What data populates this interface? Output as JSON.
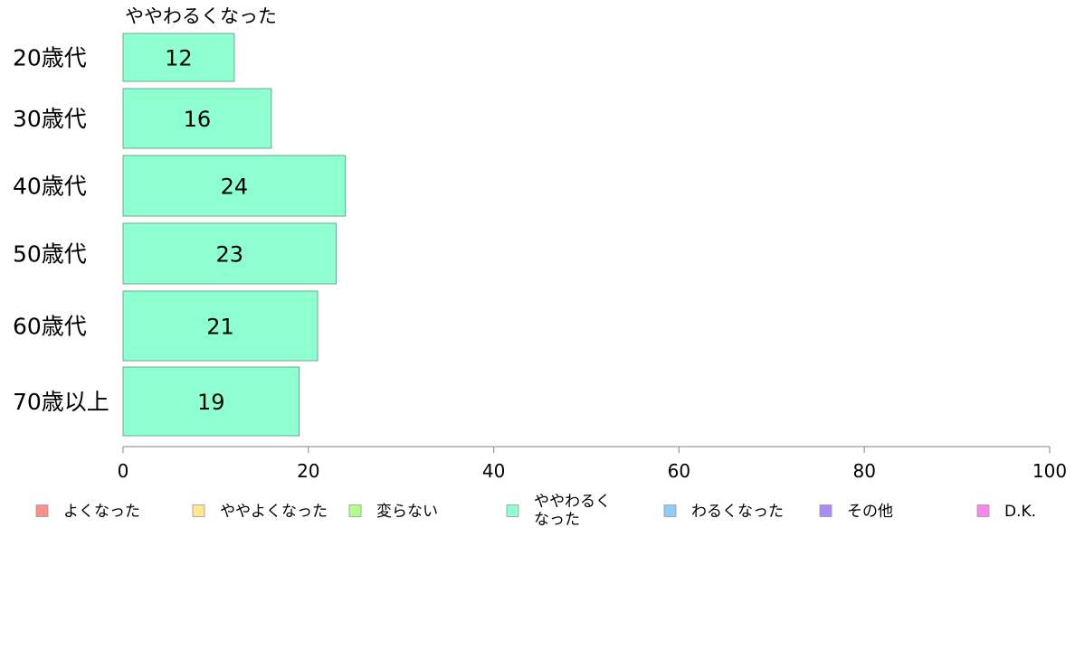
{
  "chart_data": {
    "type": "bar",
    "orientation": "horizontal",
    "title": "ややわるくなった",
    "categories": [
      "20歳代",
      "30歳代",
      "40歳代",
      "50歳代",
      "60歳代",
      "70歳以上"
    ],
    "values": [
      12,
      16,
      24,
      23,
      21,
      19
    ],
    "data_labels": [
      "12",
      "16",
      "24",
      "23",
      "21",
      "19"
    ],
    "xlim": [
      0,
      100
    ],
    "xticks": [
      0,
      20,
      40,
      60,
      80,
      100
    ],
    "grid": false,
    "bar_color": "#8effcf",
    "bar_stroke": "#6aa892",
    "legend_position": "bottom",
    "legend": [
      {
        "label": "よくなった",
        "color": "#ff8f8a"
      },
      {
        "label": "ややよくなった",
        "color": "#ffe98f"
      },
      {
        "label": "変らない",
        "color": "#b0ff8c"
      },
      {
        "label": "ややわるく\nなった",
        "color": "#8effcf"
      },
      {
        "label": "わるくなった",
        "color": "#8ecbff"
      },
      {
        "label": "その他",
        "color": "#a98cf5"
      },
      {
        "label": "D.K.",
        "color": "#ff85ee"
      }
    ]
  }
}
